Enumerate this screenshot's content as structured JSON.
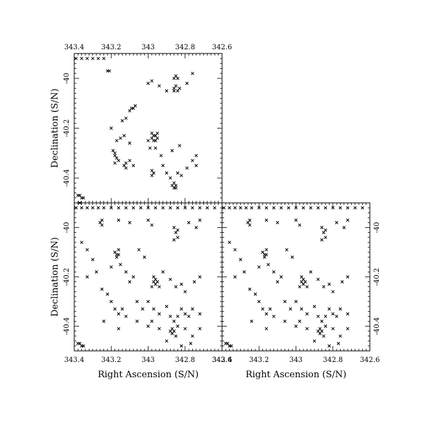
{
  "chart_data": [
    {
      "id": "top-left",
      "type": "scatter",
      "marker": "x",
      "xlim": [
        343.4,
        342.6
      ],
      "ylim": [
        -40.5,
        -39.9
      ],
      "x_ticks": [
        343.4,
        343.2,
        343.0,
        342.8,
        342.6
      ],
      "x_tick_labels": [
        "343.4",
        "343.2",
        "343",
        "342.8",
        "342.6"
      ],
      "x_tick_labels_position": "top",
      "y_ticks": [
        -40.0,
        -40.2,
        -40.4
      ],
      "y_tick_labels": [
        "-40",
        "-40.2",
        "-40.4"
      ],
      "y_tick_labels_position": "left",
      "xlabel": "",
      "ylabel": "Declination (S/N)",
      "points": [
        [
          343.39,
          -39.92
        ],
        [
          343.36,
          -39.92
        ],
        [
          343.33,
          -39.92
        ],
        [
          343.3,
          -39.92
        ],
        [
          343.27,
          -39.92
        ],
        [
          343.24,
          -39.92
        ],
        [
          343.22,
          -39.97
        ],
        [
          343.21,
          -39.97
        ],
        [
          343.09,
          -40.12
        ],
        [
          343.08,
          -40.12
        ],
        [
          343.1,
          -40.13
        ],
        [
          343.07,
          -40.11
        ],
        [
          343.12,
          -40.16
        ],
        [
          343.0,
          -40.02
        ],
        [
          342.98,
          -40.01
        ],
        [
          342.94,
          -40.03
        ],
        [
          342.9,
          -40.05
        ],
        [
          342.86,
          -40.0
        ],
        [
          342.85,
          -39.99
        ],
        [
          342.84,
          -40.0
        ],
        [
          342.86,
          -40.04
        ],
        [
          342.85,
          -40.03
        ],
        [
          342.84,
          -40.05
        ],
        [
          342.83,
          -40.04
        ],
        [
          342.86,
          -40.05
        ],
        [
          342.79,
          -40.02
        ],
        [
          342.76,
          -39.98
        ],
        [
          343.17,
          -40.25
        ],
        [
          343.15,
          -40.24
        ],
        [
          343.13,
          -40.23
        ],
        [
          343.1,
          -40.26
        ],
        [
          343.18,
          -40.3
        ],
        [
          343.18,
          -40.31
        ],
        [
          343.17,
          -40.32
        ],
        [
          343.18,
          -40.34
        ],
        [
          343.16,
          -40.33
        ],
        [
          343.19,
          -40.29
        ],
        [
          343.13,
          -40.35
        ],
        [
          343.12,
          -40.34
        ],
        [
          343.12,
          -40.36
        ],
        [
          343.1,
          -40.33
        ],
        [
          343.08,
          -40.35
        ],
        [
          343.0,
          -40.25
        ],
        [
          342.98,
          -40.24
        ],
        [
          342.97,
          -40.23
        ],
        [
          342.96,
          -40.23
        ],
        [
          342.95,
          -40.24
        ],
        [
          342.96,
          -40.25
        ],
        [
          342.97,
          -40.25
        ],
        [
          342.98,
          -40.22
        ],
        [
          342.95,
          -40.22
        ],
        [
          342.99,
          -40.28
        ],
        [
          342.96,
          -40.28
        ],
        [
          342.98,
          -40.37
        ],
        [
          342.97,
          -40.38
        ],
        [
          342.98,
          -40.39
        ],
        [
          342.92,
          -40.35
        ],
        [
          342.9,
          -40.38
        ],
        [
          342.87,
          -40.43
        ],
        [
          342.86,
          -40.44
        ],
        [
          342.85,
          -40.43
        ],
        [
          342.86,
          -40.42
        ],
        [
          342.85,
          -40.44
        ],
        [
          342.88,
          -40.4
        ],
        [
          342.84,
          -40.38
        ],
        [
          342.82,
          -40.39
        ],
        [
          342.79,
          -40.36
        ],
        [
          342.76,
          -40.33
        ],
        [
          342.74,
          -40.31
        ],
        [
          342.74,
          -40.35
        ],
        [
          343.2,
          -40.2
        ],
        [
          343.14,
          -40.17
        ],
        [
          342.93,
          -40.31
        ],
        [
          342.87,
          -40.29
        ],
        [
          342.83,
          -40.27
        ],
        [
          343.38,
          -40.47
        ],
        [
          343.37,
          -40.47
        ],
        [
          343.36,
          -40.48
        ],
        [
          343.35,
          -40.48
        ],
        [
          343.37,
          -40.5
        ]
      ]
    },
    {
      "id": "bottom-left",
      "type": "scatter",
      "marker": "x",
      "xlim": [
        343.4,
        342.6
      ],
      "ylim": [
        -40.5,
        -39.9
      ],
      "x_ticks": [
        343.4,
        343.2,
        343.0,
        342.8,
        342.6
      ],
      "x_tick_labels": [
        "343.4",
        "343.2",
        "343",
        "342.8",
        "342.6"
      ],
      "x_tick_labels_position": "bottom",
      "y_ticks": [
        -40.0,
        -40.2,
        -40.4
      ],
      "y_tick_labels": [
        "-40",
        "-40.2",
        "-40.4"
      ],
      "y_tick_labels_position": "left",
      "xlabel": "Right Ascension (S/N)",
      "ylabel": "Declination (S/N)",
      "points": [
        [
          343.39,
          -39.92
        ],
        [
          343.36,
          -39.92
        ],
        [
          343.33,
          -39.92
        ],
        [
          343.3,
          -39.92
        ],
        [
          343.27,
          -39.92
        ],
        [
          343.24,
          -39.92
        ],
        [
          343.2,
          -39.92
        ],
        [
          343.16,
          -39.92
        ],
        [
          343.12,
          -39.92
        ],
        [
          343.08,
          -39.92
        ],
        [
          343.04,
          -39.92
        ],
        [
          343.0,
          -39.92
        ],
        [
          342.96,
          -39.92
        ],
        [
          342.92,
          -39.92
        ],
        [
          342.88,
          -39.92
        ],
        [
          342.84,
          -39.92
        ],
        [
          342.8,
          -39.92
        ],
        [
          342.76,
          -39.92
        ],
        [
          342.72,
          -39.92
        ],
        [
          342.68,
          -39.92
        ],
        [
          342.64,
          -39.92
        ],
        [
          343.26,
          -39.98
        ],
        [
          343.25,
          -39.97
        ],
        [
          343.25,
          -39.99
        ],
        [
          343.16,
          -39.97
        ],
        [
          343.1,
          -39.98
        ],
        [
          343.0,
          -39.97
        ],
        [
          342.98,
          -39.99
        ],
        [
          342.86,
          -40.0
        ],
        [
          342.85,
          -40.02
        ],
        [
          342.84,
          -40.04
        ],
        [
          342.86,
          -40.05
        ],
        [
          342.84,
          -40.01
        ],
        [
          342.78,
          -39.98
        ],
        [
          342.74,
          -40.0
        ],
        [
          342.72,
          -39.97
        ],
        [
          343.18,
          -40.1
        ],
        [
          343.17,
          -40.11
        ],
        [
          343.16,
          -40.09
        ],
        [
          343.16,
          -40.11
        ],
        [
          343.17,
          -40.12
        ],
        [
          343.05,
          -40.09
        ],
        [
          343.02,
          -40.12
        ],
        [
          343.36,
          -40.06
        ],
        [
          343.33,
          -40.09
        ],
        [
          343.3,
          -40.13
        ],
        [
          343.28,
          -40.18
        ],
        [
          343.33,
          -40.2
        ],
        [
          343.2,
          -40.16
        ],
        [
          343.15,
          -40.15
        ],
        [
          343.12,
          -40.18
        ],
        [
          343.08,
          -40.2
        ],
        [
          343.1,
          -40.22
        ],
        [
          342.97,
          -40.22
        ],
        [
          342.96,
          -40.21
        ],
        [
          342.95,
          -40.22
        ],
        [
          342.96,
          -40.23
        ],
        [
          342.94,
          -40.24
        ],
        [
          342.98,
          -40.24
        ],
        [
          342.97,
          -40.2
        ],
        [
          342.92,
          -40.18
        ],
        [
          342.88,
          -40.21
        ],
        [
          342.85,
          -40.24
        ],
        [
          342.82,
          -40.23
        ],
        [
          342.8,
          -40.26
        ],
        [
          342.75,
          -40.22
        ],
        [
          342.72,
          -40.2
        ],
        [
          343.25,
          -40.25
        ],
        [
          343.22,
          -40.27
        ],
        [
          343.2,
          -40.3
        ],
        [
          343.18,
          -40.33
        ],
        [
          343.16,
          -40.35
        ],
        [
          343.14,
          -40.33
        ],
        [
          343.12,
          -40.36
        ],
        [
          343.06,
          -40.3
        ],
        [
          343.03,
          -40.33
        ],
        [
          343.0,
          -40.3
        ],
        [
          342.97,
          -40.33
        ],
        [
          342.94,
          -40.35
        ],
        [
          342.9,
          -40.32
        ],
        [
          342.88,
          -40.36
        ],
        [
          342.86,
          -40.38
        ],
        [
          342.84,
          -40.36
        ],
        [
          342.82,
          -40.33
        ],
        [
          342.8,
          -40.35
        ],
        [
          342.78,
          -40.36
        ],
        [
          342.76,
          -40.33
        ],
        [
          342.72,
          -40.35
        ],
        [
          343.24,
          -40.38
        ],
        [
          343.16,
          -40.41
        ],
        [
          343.06,
          -40.38
        ],
        [
          343.0,
          -40.4
        ],
        [
          342.98,
          -40.38
        ],
        [
          342.94,
          -40.41
        ],
        [
          342.88,
          -40.42
        ],
        [
          342.87,
          -40.43
        ],
        [
          342.86,
          -40.42
        ],
        [
          342.87,
          -40.41
        ],
        [
          342.85,
          -40.44
        ],
        [
          342.84,
          -40.4
        ],
        [
          342.8,
          -40.41
        ],
        [
          342.76,
          -40.44
        ],
        [
          342.72,
          -40.41
        ],
        [
          342.9,
          -40.46
        ],
        [
          342.82,
          -40.48
        ],
        [
          342.77,
          -40.47
        ],
        [
          343.38,
          -40.47
        ],
        [
          343.37,
          -40.47
        ],
        [
          343.36,
          -40.48
        ],
        [
          343.35,
          -40.48
        ]
      ]
    },
    {
      "id": "bottom-right",
      "type": "scatter",
      "marker": "x",
      "xlim": [
        343.4,
        342.6
      ],
      "ylim": [
        -40.5,
        -39.9
      ],
      "x_ticks": [
        343.4,
        343.2,
        343.0,
        342.8,
        342.6
      ],
      "x_tick_labels": [
        "343.4",
        "343.2",
        "343",
        "342.8",
        "342.6"
      ],
      "x_tick_labels_position": "bottom",
      "y_ticks": [
        -40.0,
        -40.2,
        -40.4
      ],
      "y_tick_labels": [
        "-40",
        "-40.2",
        "-40.4"
      ],
      "y_tick_labels_position": "right",
      "xlabel": "Right Ascension (S/N)",
      "ylabel": "",
      "points": [
        [
          343.39,
          -39.92
        ],
        [
          343.36,
          -39.92
        ],
        [
          343.33,
          -39.92
        ],
        [
          343.3,
          -39.92
        ],
        [
          343.27,
          -39.92
        ],
        [
          343.24,
          -39.92
        ],
        [
          343.2,
          -39.92
        ],
        [
          343.16,
          -39.92
        ],
        [
          343.12,
          -39.92
        ],
        [
          343.08,
          -39.92
        ],
        [
          343.04,
          -39.92
        ],
        [
          343.0,
          -39.92
        ],
        [
          342.96,
          -39.92
        ],
        [
          342.92,
          -39.92
        ],
        [
          342.88,
          -39.92
        ],
        [
          342.84,
          -39.92
        ],
        [
          342.8,
          -39.92
        ],
        [
          342.76,
          -39.92
        ],
        [
          342.72,
          -39.92
        ],
        [
          342.68,
          -39.92
        ],
        [
          342.64,
          -39.92
        ],
        [
          343.26,
          -39.98
        ],
        [
          343.25,
          -39.97
        ],
        [
          343.25,
          -39.99
        ],
        [
          343.16,
          -39.97
        ],
        [
          343.1,
          -39.98
        ],
        [
          343.0,
          -39.97
        ],
        [
          342.98,
          -39.99
        ],
        [
          342.86,
          -40.0
        ],
        [
          342.85,
          -40.02
        ],
        [
          342.84,
          -40.04
        ],
        [
          342.86,
          -40.05
        ],
        [
          342.84,
          -40.01
        ],
        [
          342.78,
          -39.98
        ],
        [
          342.74,
          -40.0
        ],
        [
          342.72,
          -39.97
        ],
        [
          343.18,
          -40.1
        ],
        [
          343.17,
          -40.11
        ],
        [
          343.16,
          -40.09
        ],
        [
          343.16,
          -40.11
        ],
        [
          343.17,
          -40.12
        ],
        [
          343.05,
          -40.09
        ],
        [
          343.02,
          -40.12
        ],
        [
          343.36,
          -40.06
        ],
        [
          343.33,
          -40.09
        ],
        [
          343.3,
          -40.13
        ],
        [
          343.28,
          -40.18
        ],
        [
          343.33,
          -40.2
        ],
        [
          343.2,
          -40.16
        ],
        [
          343.15,
          -40.15
        ],
        [
          343.12,
          -40.18
        ],
        [
          343.08,
          -40.2
        ],
        [
          343.1,
          -40.22
        ],
        [
          342.97,
          -40.22
        ],
        [
          342.96,
          -40.21
        ],
        [
          342.95,
          -40.22
        ],
        [
          342.96,
          -40.23
        ],
        [
          342.94,
          -40.24
        ],
        [
          342.98,
          -40.24
        ],
        [
          342.97,
          -40.2
        ],
        [
          342.92,
          -40.18
        ],
        [
          342.88,
          -40.21
        ],
        [
          342.85,
          -40.24
        ],
        [
          342.82,
          -40.23
        ],
        [
          342.8,
          -40.26
        ],
        [
          342.75,
          -40.22
        ],
        [
          342.72,
          -40.2
        ],
        [
          343.25,
          -40.25
        ],
        [
          343.22,
          -40.27
        ],
        [
          343.2,
          -40.3
        ],
        [
          343.18,
          -40.33
        ],
        [
          343.16,
          -40.35
        ],
        [
          343.14,
          -40.33
        ],
        [
          343.12,
          -40.36
        ],
        [
          343.06,
          -40.3
        ],
        [
          343.03,
          -40.33
        ],
        [
          343.0,
          -40.3
        ],
        [
          342.97,
          -40.33
        ],
        [
          342.94,
          -40.35
        ],
        [
          342.9,
          -40.32
        ],
        [
          342.88,
          -40.36
        ],
        [
          342.86,
          -40.38
        ],
        [
          342.84,
          -40.36
        ],
        [
          342.82,
          -40.33
        ],
        [
          342.8,
          -40.35
        ],
        [
          342.78,
          -40.36
        ],
        [
          342.76,
          -40.33
        ],
        [
          342.72,
          -40.35
        ],
        [
          343.24,
          -40.38
        ],
        [
          343.16,
          -40.41
        ],
        [
          343.06,
          -40.38
        ],
        [
          343.0,
          -40.4
        ],
        [
          342.98,
          -40.38
        ],
        [
          342.94,
          -40.41
        ],
        [
          342.88,
          -40.42
        ],
        [
          342.87,
          -40.43
        ],
        [
          342.86,
          -40.42
        ],
        [
          342.87,
          -40.41
        ],
        [
          342.85,
          -40.44
        ],
        [
          342.84,
          -40.4
        ],
        [
          342.8,
          -40.41
        ],
        [
          342.76,
          -40.44
        ],
        [
          342.72,
          -40.41
        ],
        [
          342.9,
          -40.46
        ],
        [
          342.82,
          -40.48
        ],
        [
          342.77,
          -40.47
        ],
        [
          343.38,
          -40.47
        ],
        [
          343.37,
          -40.47
        ],
        [
          343.36,
          -40.48
        ],
        [
          343.35,
          -40.48
        ]
      ]
    }
  ]
}
